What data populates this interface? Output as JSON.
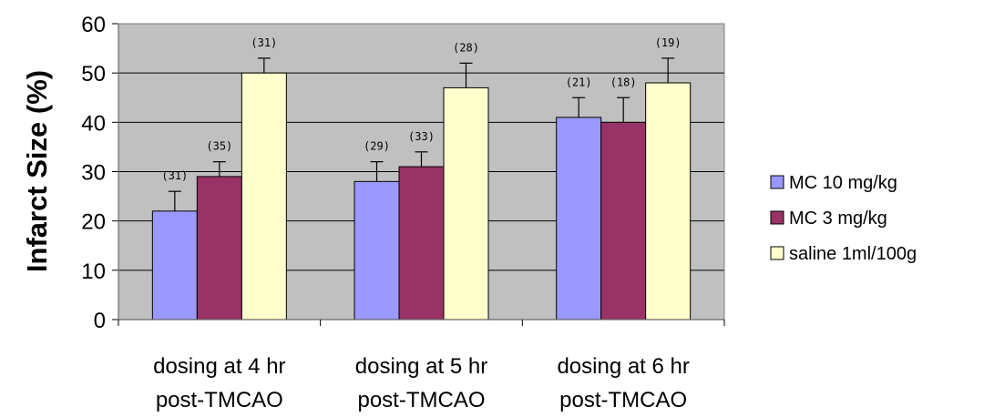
{
  "chart_data": {
    "type": "bar",
    "title": "",
    "xlabel": "",
    "ylabel": "Infarct Size (%)",
    "ylim": [
      0,
      60
    ],
    "yticks": [
      0,
      10,
      20,
      30,
      40,
      50,
      60
    ],
    "grid": true,
    "legend_position": "right",
    "plot_background": "#c0c0c0",
    "categories": [
      [
        "dosing at 4 hr",
        "post-TMCAO"
      ],
      [
        "dosing at 5 hr",
        "post-TMCAO"
      ],
      [
        "dosing at 6 hr",
        "post-TMCAO"
      ]
    ],
    "series": [
      {
        "name": "MC 10 mg/kg",
        "color": "#9999ff",
        "values": [
          22,
          28,
          41
        ],
        "errors": [
          4,
          4,
          4
        ],
        "n_labels": [
          "(31)",
          "(29)",
          "(21)"
        ]
      },
      {
        "name": "MC 3 mg/kg",
        "color": "#993366",
        "values": [
          29,
          31,
          40
        ],
        "errors": [
          3,
          3,
          5
        ],
        "n_labels": [
          "(35)",
          "(33)",
          "(18)"
        ]
      },
      {
        "name": "saline 1ml/100g",
        "color": "#ffffcc",
        "values": [
          50,
          47,
          48
        ],
        "errors": [
          3,
          5,
          5
        ],
        "n_labels": [
          "(31)",
          "(28)",
          "(19)"
        ]
      }
    ]
  }
}
